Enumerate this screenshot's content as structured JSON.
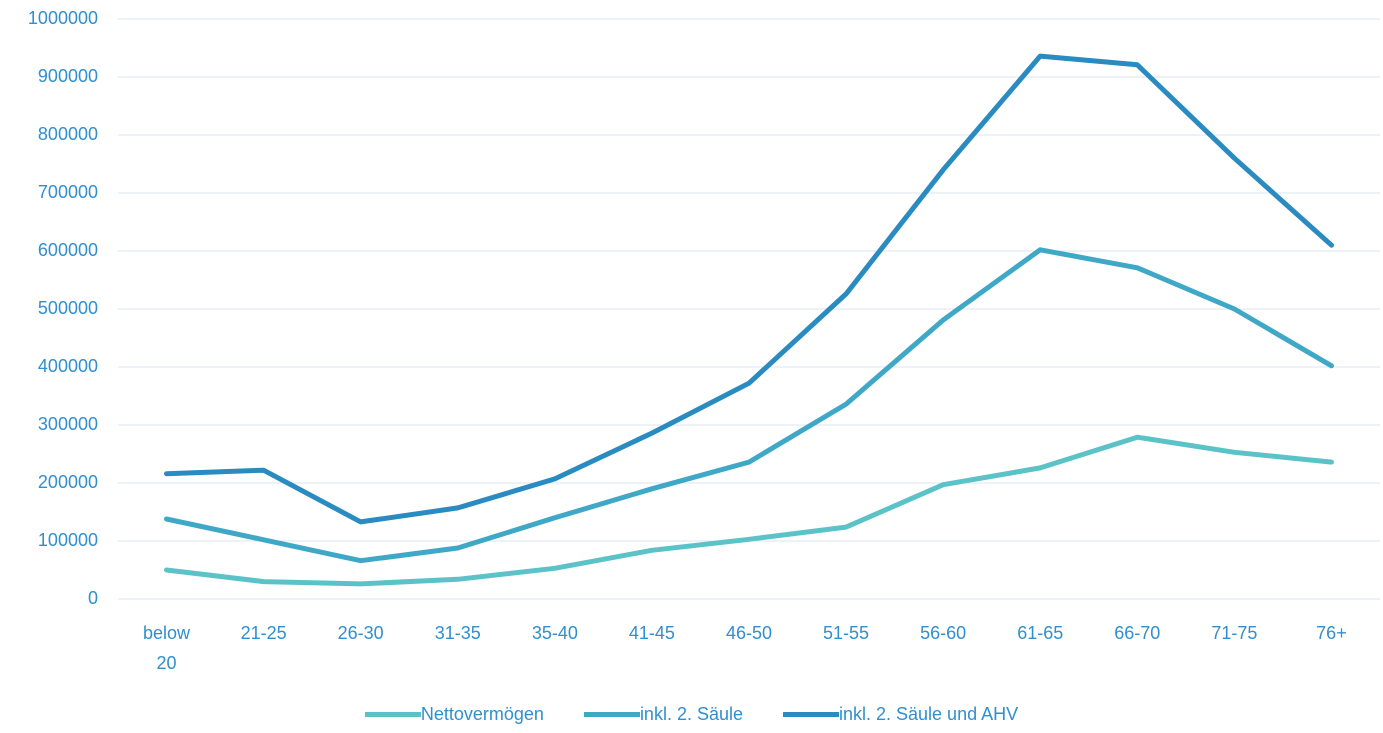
{
  "chart_data": {
    "type": "line",
    "categories": [
      "below 20",
      "21-25",
      "26-30",
      "31-35",
      "35-40",
      "41-45",
      "46-50",
      "51-55",
      "56-60",
      "61-65",
      "66-70",
      "71-75",
      "76+"
    ],
    "series": [
      {
        "name": "Nettovermögen",
        "color": "#5bc3c8",
        "values": [
          50000,
          30000,
          26000,
          34000,
          53000,
          84000,
          103000,
          124000,
          197000,
          226000,
          279000,
          253000,
          236000
        ]
      },
      {
        "name": "inkl. 2. Säule",
        "color": "#3fa8c6",
        "values": [
          138000,
          102000,
          66000,
          88000,
          140000,
          190000,
          236000,
          336000,
          481000,
          602000,
          571000,
          500000,
          402000
        ]
      },
      {
        "name": "inkl. 2. Säule und AHV",
        "color": "#2a8bc0",
        "values": [
          216000,
          222000,
          133000,
          157000,
          207000,
          286000,
          372000,
          526000,
          740000,
          936000,
          921000,
          760000,
          610000
        ]
      }
    ],
    "ylim": [
      0,
      1000000
    ],
    "yticks": [
      0,
      100000,
      200000,
      300000,
      400000,
      500000,
      600000,
      700000,
      800000,
      900000,
      1000000
    ],
    "grid": true,
    "legend": "bottom"
  }
}
